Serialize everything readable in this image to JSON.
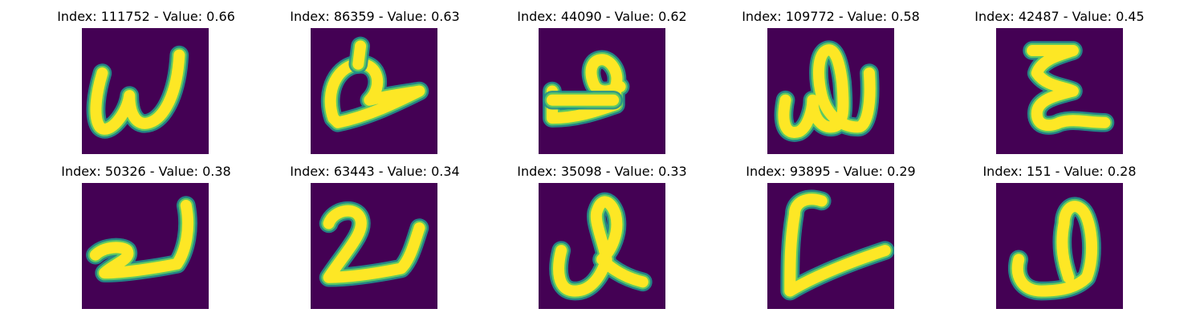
{
  "colors": {
    "background": "#440154",
    "stroke_edge": "#21918c",
    "stroke_mid": "#5ec962",
    "stroke_core": "#fde725"
  },
  "panels": [
    {
      "index_label": "Index:",
      "index": "111752",
      "value_label": "Value:",
      "value": "0.66",
      "glyph": "w"
    },
    {
      "index_label": "Index:",
      "index": "86359",
      "value_label": "Value:",
      "value": "0.63",
      "glyph": "bird"
    },
    {
      "index_label": "Index:",
      "index": "44090",
      "value_label": "Value:",
      "value": "0.62",
      "glyph": "loop-hook"
    },
    {
      "index_label": "Index:",
      "index": "109772",
      "value_label": "Value:",
      "value": "0.58",
      "glyph": "w-loop"
    },
    {
      "index_label": "Index:",
      "index": "42487",
      "value_label": "Value:",
      "value": "0.45",
      "glyph": "ain"
    },
    {
      "index_label": "Index:",
      "index": "50326",
      "value_label": "Value:",
      "value": "0.38",
      "glyph": "squiggle-hook"
    },
    {
      "index_label": "Index:",
      "index": "63443",
      "value_label": "Value:",
      "value": "0.34",
      "glyph": "two-hook"
    },
    {
      "index_label": "Index:",
      "index": "35098",
      "value_label": "Value:",
      "value": "0.33",
      "glyph": "loop-tall"
    },
    {
      "index_label": "Index:",
      "index": "93895",
      "value_label": "Value:",
      "value": "0.29",
      "glyph": "c-line"
    },
    {
      "index_label": "Index:",
      "index": "151",
      "value_label": "Value:",
      "value": "0.28",
      "glyph": "loop-d"
    }
  ]
}
